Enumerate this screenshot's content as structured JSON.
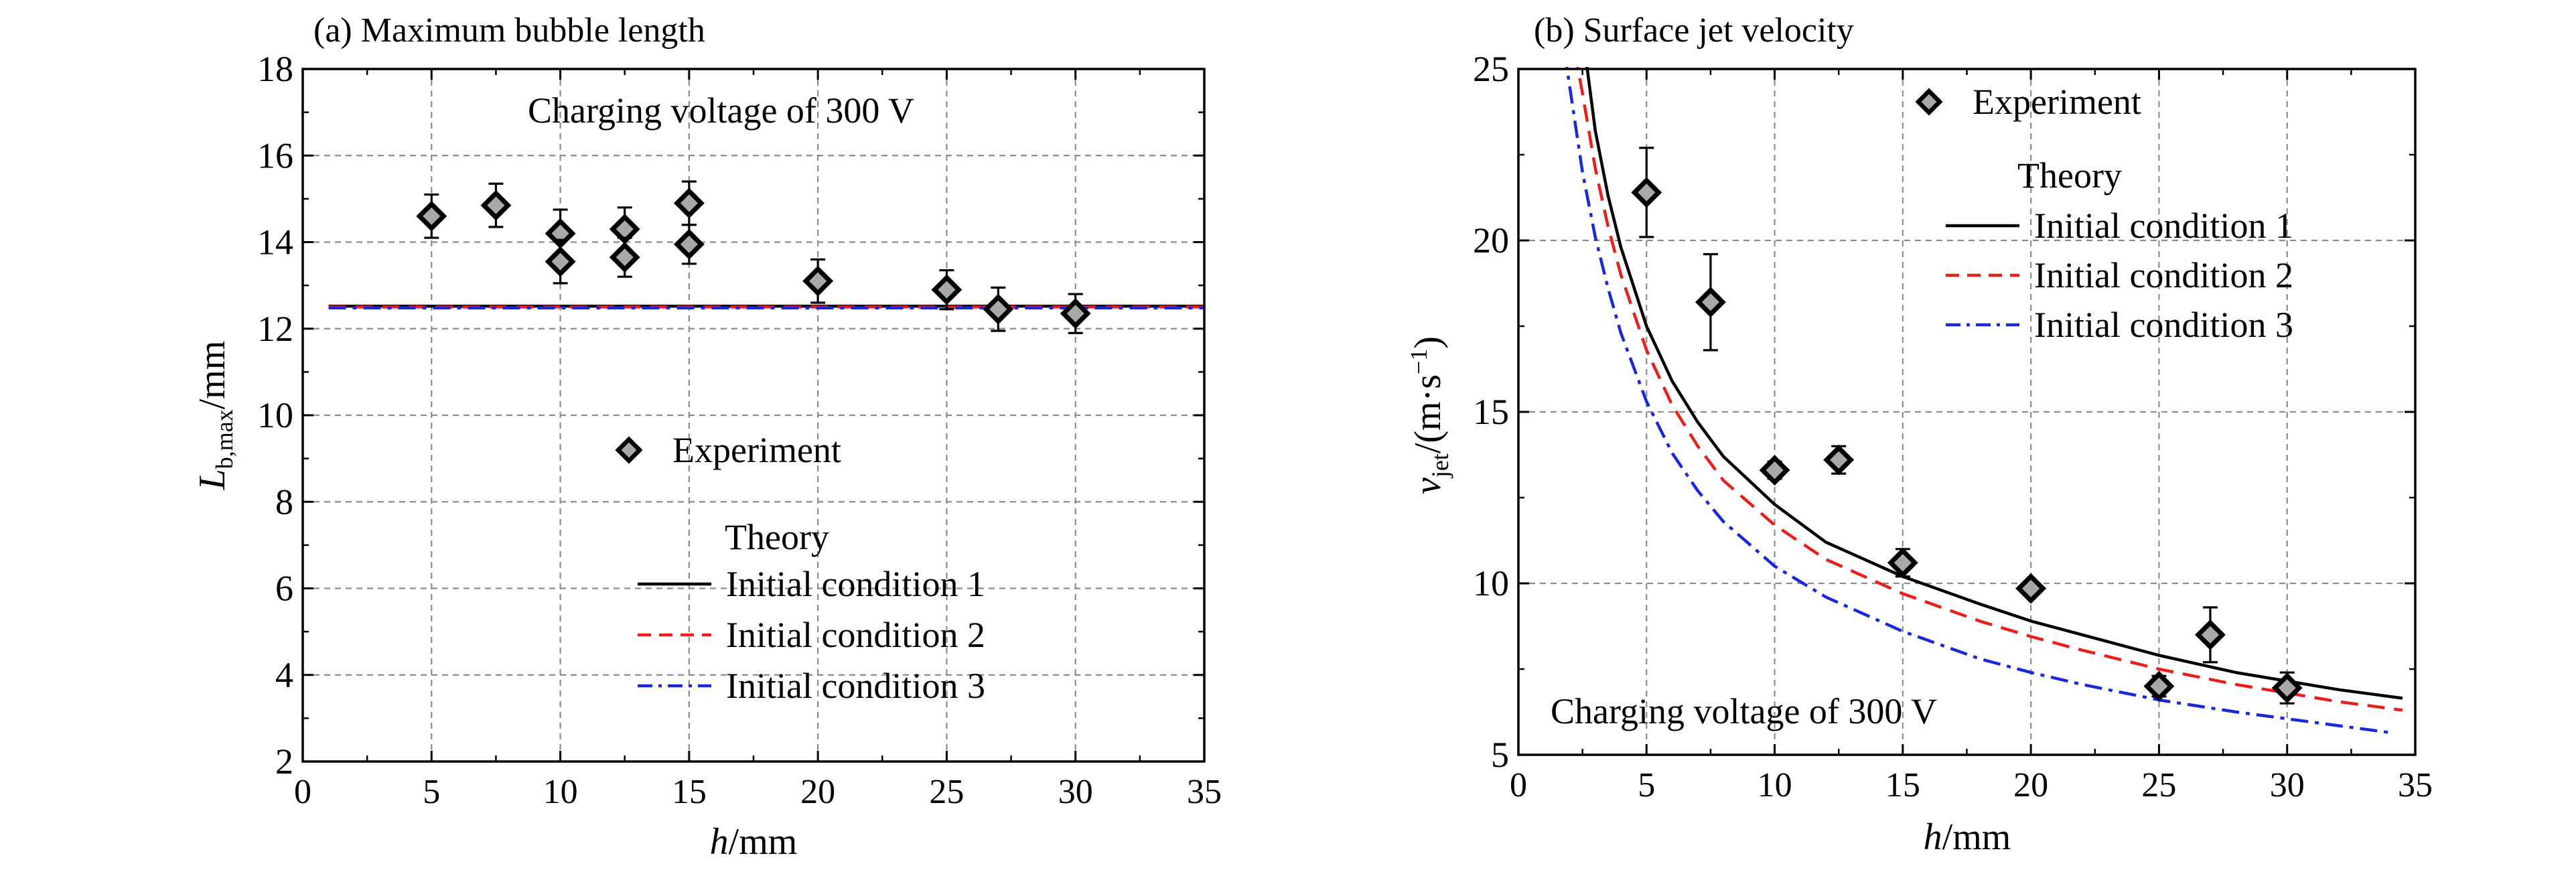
{
  "chart_data": [
    {
      "type": "scatter",
      "title": "(a) Maximum bubble length",
      "annotation": "Charging voltage of 300 V",
      "xlabel": {
        "italic": "h",
        "rest": "/mm"
      },
      "ylabel": {
        "italic": "L",
        "sub": "b,max",
        "rest": "/mm"
      },
      "xlim": [
        0,
        35
      ],
      "ylim": [
        2,
        18
      ],
      "xticks": [
        0,
        5,
        10,
        15,
        20,
        25,
        30,
        35
      ],
      "yticks": [
        2,
        4,
        6,
        8,
        10,
        12,
        14,
        16,
        18
      ],
      "grid": true,
      "legend": {
        "placement": "center-bottom",
        "experiment_label": "Experiment",
        "theory_heading": "Theory",
        "lines": [
          {
            "label": "Initial condition 1",
            "color": "#000000",
            "style": "solid"
          },
          {
            "label": "Initial condition 2",
            "color": "#e8201d",
            "style": "dashed"
          },
          {
            "label": "Initial condition 3",
            "color": "#1a28d8",
            "style": "dashdot"
          }
        ]
      },
      "experiment": [
        {
          "x": 5,
          "y": 14.6,
          "err": 0.5
        },
        {
          "x": 7.5,
          "y": 14.85,
          "err": 0.5
        },
        {
          "x": 10,
          "y": 14.2,
          "err": 0.55
        },
        {
          "x": 10,
          "y": 13.55,
          "err": 0.5
        },
        {
          "x": 12.5,
          "y": 14.3,
          "err": 0.5
        },
        {
          "x": 12.5,
          "y": 13.65,
          "err": 0.45
        },
        {
          "x": 15,
          "y": 14.9,
          "err": 0.5
        },
        {
          "x": 15,
          "y": 13.95,
          "err": 0.45
        },
        {
          "x": 20,
          "y": 13.1,
          "err": 0.5
        },
        {
          "x": 25,
          "y": 12.9,
          "err": 0.45
        },
        {
          "x": 27,
          "y": 12.45,
          "err": 0.5
        },
        {
          "x": 30,
          "y": 12.35,
          "err": 0.45
        }
      ],
      "theory": [
        {
          "name": "Initial condition 1",
          "x": [
            1,
            35
          ],
          "y": [
            12.52,
            12.52
          ]
        },
        {
          "name": "Initial condition 2",
          "x": [
            1,
            35
          ],
          "y": [
            12.5,
            12.5
          ]
        },
        {
          "name": "Initial condition 3",
          "x": [
            1,
            35
          ],
          "y": [
            12.48,
            12.48
          ]
        }
      ]
    },
    {
      "type": "scatter",
      "title": "(b) Surface jet velocity",
      "annotation": "Charging voltage of 300 V",
      "xlabel": {
        "italic": "h",
        "rest": "/mm"
      },
      "ylabel": {
        "italic": "v",
        "sub": "jet",
        "rest": "/(m·s",
        "sup": "−1",
        "close": ")"
      },
      "xlim": [
        0,
        35
      ],
      "ylim": [
        5,
        25
      ],
      "xticks": [
        0,
        5,
        10,
        15,
        20,
        25,
        30,
        35
      ],
      "yticks": [
        5,
        10,
        15,
        20,
        25
      ],
      "grid": true,
      "legend": {
        "placement": "top-right",
        "experiment_label": "Experiment",
        "theory_heading": "Theory",
        "lines": [
          {
            "label": "Initial condition 1",
            "color": "#000000",
            "style": "solid"
          },
          {
            "label": "Initial condition 2",
            "color": "#e8201d",
            "style": "dashed"
          },
          {
            "label": "Initial condition 3",
            "color": "#1a28d8",
            "style": "dashdot"
          }
        ]
      },
      "experiment": [
        {
          "x": 5,
          "y": 21.4,
          "err": 1.3
        },
        {
          "x": 7.5,
          "y": 18.2,
          "err": 1.4
        },
        {
          "x": 10,
          "y": 13.3,
          "err": 0.25
        },
        {
          "x": 12.5,
          "y": 13.6,
          "err": 0.4
        },
        {
          "x": 15,
          "y": 10.6,
          "err": 0.4
        },
        {
          "x": 20,
          "y": 9.85,
          "err": 0.2
        },
        {
          "x": 25,
          "y": 7.0,
          "err": 0.3
        },
        {
          "x": 27,
          "y": 8.5,
          "err": 0.8
        },
        {
          "x": 30,
          "y": 6.95,
          "err": 0.45
        }
      ],
      "theory": [
        {
          "name": "Initial condition 1",
          "x": [
            2.6,
            3,
            3.5,
            4,
            5,
            6,
            7,
            8,
            10,
            12,
            15,
            18,
            20,
            22,
            25,
            28,
            30,
            32,
            34.5
          ],
          "y": [
            25.5,
            23.2,
            21.3,
            19.8,
            17.5,
            15.9,
            14.7,
            13.7,
            12.3,
            11.2,
            10.2,
            9.4,
            8.9,
            8.5,
            7.9,
            7.4,
            7.15,
            6.9,
            6.65
          ]
        },
        {
          "name": "Initial condition 2",
          "x": [
            2.2,
            2.5,
            3,
            3.5,
            4,
            5,
            6,
            7,
            8,
            10,
            12,
            15,
            18,
            20,
            22,
            25,
            28,
            30,
            32,
            34.5
          ],
          "y": [
            25.5,
            24.3,
            22.1,
            20.4,
            19.0,
            16.8,
            15.2,
            14.0,
            13.0,
            11.7,
            10.7,
            9.7,
            8.9,
            8.45,
            8.05,
            7.5,
            7.05,
            6.8,
            6.55,
            6.3
          ]
        },
        {
          "name": "Initial condition 3",
          "x": [
            1.8,
            2,
            2.5,
            3,
            3.5,
            4,
            5,
            6,
            7,
            8,
            10,
            12,
            15,
            18,
            20,
            22,
            25,
            28,
            30,
            32,
            34
          ],
          "y": [
            25.5,
            24.5,
            22.0,
            20.1,
            18.6,
            17.3,
            15.3,
            13.8,
            12.7,
            11.8,
            10.5,
            9.6,
            8.6,
            7.8,
            7.4,
            7.05,
            6.6,
            6.25,
            6.05,
            5.85,
            5.65
          ]
        }
      ]
    }
  ]
}
